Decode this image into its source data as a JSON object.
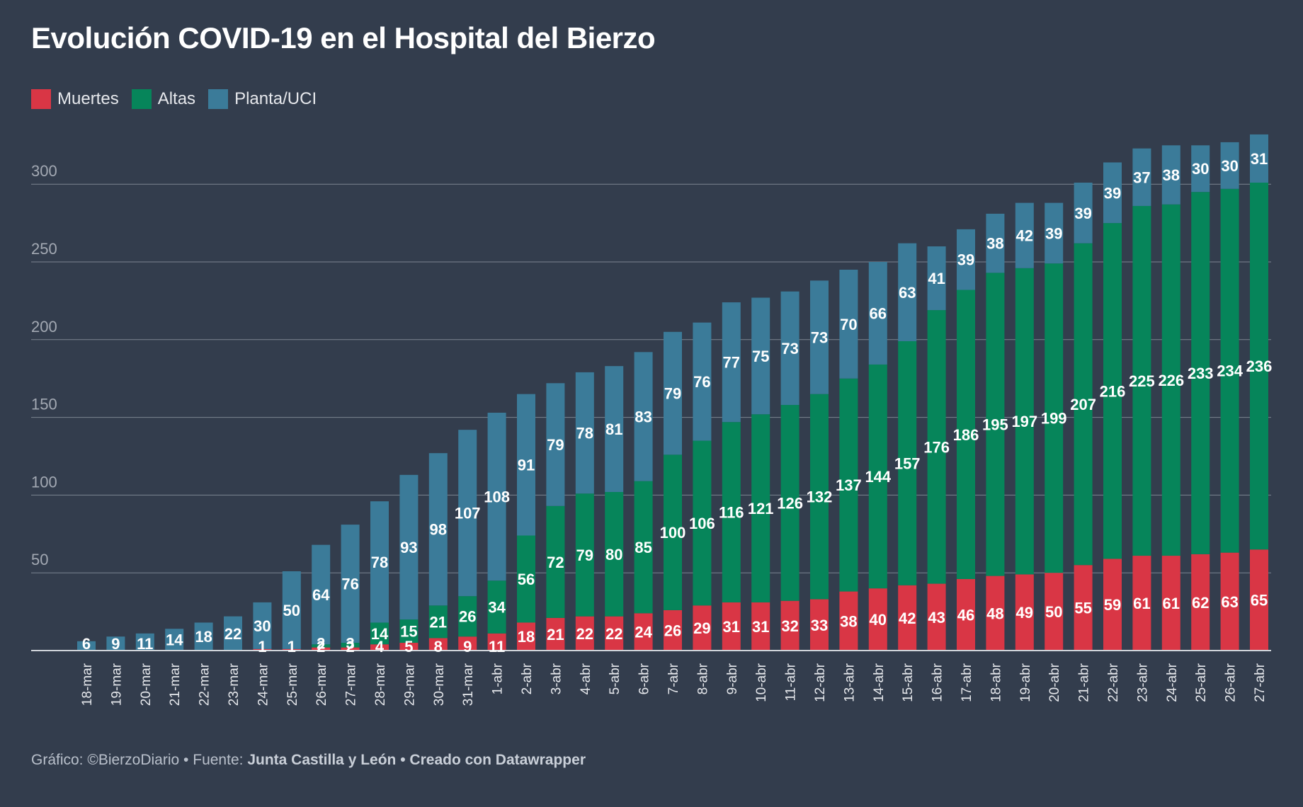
{
  "title": "Evolución COVID-19 en el Hospital del Bierzo",
  "footer": {
    "grafico": "Gráfico: ©BierzoDiario",
    "fuente_label": "Fuente:",
    "fuente": "Junta Castilla y León",
    "separator": "•",
    "creado": "Creado con Datawrapper"
  },
  "colors": {
    "background": "#333d4d",
    "muertes": "#d93645",
    "altas": "#06855a",
    "planta": "#3b7b99",
    "grid": "#8a929e"
  },
  "chart_data": {
    "type": "bar",
    "stacked": true,
    "title": "Evolución COVID-19 en el Hospital del Bierzo",
    "ylim": [
      0,
      330
    ],
    "yticks": [
      50,
      100,
      150,
      200,
      250,
      300
    ],
    "grid": true,
    "legend_position": "top-left",
    "categories": [
      "18-mar",
      "19-mar",
      "20-mar",
      "21-mar",
      "22-mar",
      "23-mar",
      "24-mar",
      "25-mar",
      "26-mar",
      "27-mar",
      "28-mar",
      "29-mar",
      "30-mar",
      "31-mar",
      "1-abr",
      "2-abr",
      "3-abr",
      "4-abr",
      "5-abr",
      "6-abr",
      "7-abr",
      "8-abr",
      "9-abr",
      "10-abr",
      "11-abr",
      "12-abr",
      "13-abr",
      "14-abr",
      "15-abr",
      "16-abr",
      "17-abr",
      "18-abr",
      "19-abr",
      "20-abr",
      "21-abr",
      "22-abr",
      "23-abr",
      "24-abr",
      "25-abr",
      "26-abr",
      "27-abr"
    ],
    "series": [
      {
        "name": "Muertes",
        "color": "#d93645",
        "values": [
          0,
          0,
          0,
          0,
          0,
          0,
          1,
          1,
          2,
          2,
          4,
          5,
          8,
          9,
          11,
          18,
          21,
          22,
          22,
          24,
          26,
          29,
          31,
          31,
          32,
          33,
          38,
          40,
          42,
          43,
          46,
          48,
          49,
          50,
          55,
          59,
          61,
          61,
          62,
          63,
          65
        ]
      },
      {
        "name": "Altas",
        "color": "#06855a",
        "values": [
          0,
          0,
          0,
          0,
          0,
          0,
          0,
          0,
          2,
          3,
          14,
          15,
          21,
          26,
          34,
          56,
          72,
          79,
          80,
          85,
          100,
          106,
          116,
          121,
          126,
          132,
          137,
          144,
          157,
          176,
          186,
          195,
          197,
          199,
          207,
          216,
          225,
          226,
          233,
          234,
          236
        ]
      },
      {
        "name": "Planta/UCI",
        "color": "#3b7b99",
        "values": [
          6,
          9,
          11,
          14,
          18,
          22,
          30,
          50,
          64,
          76,
          78,
          93,
          98,
          107,
          108,
          91,
          79,
          78,
          81,
          83,
          79,
          76,
          77,
          75,
          73,
          73,
          70,
          66,
          63,
          41,
          39,
          38,
          42,
          39,
          39,
          39,
          37,
          38,
          30,
          30,
          31
        ]
      }
    ]
  }
}
